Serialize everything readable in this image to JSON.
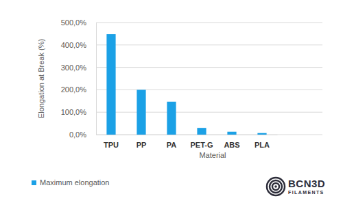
{
  "chart_data": {
    "type": "bar",
    "y_label": "Elongation at Break (%)",
    "x_label": "Material",
    "categories": [
      "TPU",
      "PP",
      "PA",
      "PET-G",
      "ABS",
      "PLA"
    ],
    "series": [
      {
        "name": "Maximum elongation",
        "color": "#1ba1e6",
        "values": [
          448,
          200,
          147,
          30,
          13,
          7
        ]
      }
    ],
    "ylim": [
      0,
      500
    ],
    "yticks": [
      {
        "value": 0,
        "label": "0,0%"
      },
      {
        "value": 100,
        "label": "100,0%"
      },
      {
        "value": 200,
        "label": "200,0%"
      },
      {
        "value": 300,
        "label": "300,0%"
      },
      {
        "value": 400,
        "label": "400,0%"
      },
      {
        "value": 500,
        "label": "500,0%"
      }
    ],
    "grid": true,
    "legend": "bottom-left",
    "annotations": [
      "BCN3D",
      "FILAMENTS"
    ]
  }
}
